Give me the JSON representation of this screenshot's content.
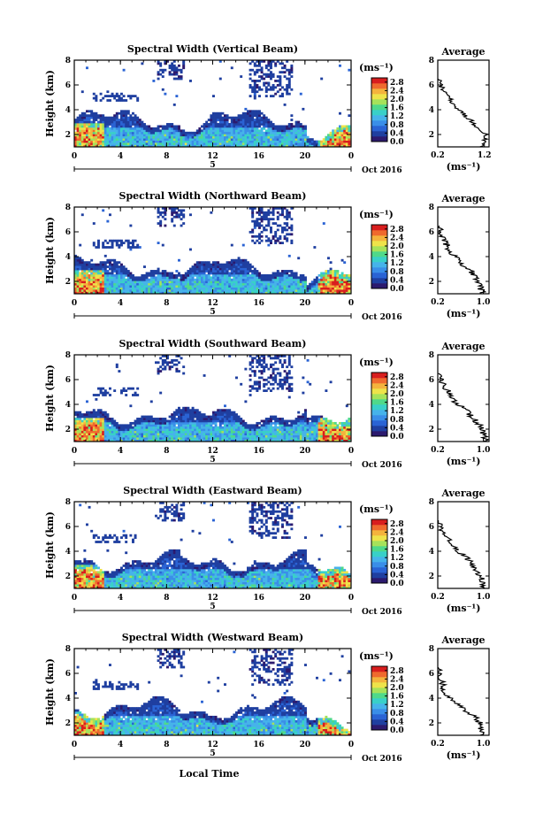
{
  "figure": {
    "xlabel": "Local Time",
    "day_label": "5",
    "month_label": "Oct 2016",
    "unit_label": "(ms⁻¹)",
    "avg_title": "Average",
    "avg_xunit": "(ms⁻¹)",
    "height_label": "Height (km)"
  },
  "chart_data": [
    {
      "type": "heatmap",
      "title": "Spectral Width (Vertical Beam)",
      "ylabel": "Height (km)",
      "x_ticks": [
        "0",
        "4",
        "8",
        "12",
        "16",
        "20",
        "0"
      ],
      "y_ticks": [
        "2",
        "4",
        "6",
        "8"
      ],
      "xlim": [
        0,
        24
      ],
      "ylim": [
        1,
        8
      ],
      "colorbar": {
        "ticks": [
          "0.0",
          "0.4",
          "0.8",
          "1.2",
          "1.6",
          "2.0",
          "2.4",
          "2.8"
        ],
        "range": [
          0,
          3.0
        ]
      },
      "profile": {
        "title": "Average",
        "x_ticks": [
          "0.2",
          "1.2"
        ],
        "xlim": [
          0.2,
          1.3
        ],
        "y_ticks": [
          "2",
          "4",
          "6",
          "8"
        ],
        "ylim": [
          1,
          8
        ],
        "heights": [
          1.0,
          1.5,
          2.0,
          2.5,
          3.0,
          3.5,
          4.0,
          4.5,
          5.0,
          5.5,
          6.0,
          6.5
        ],
        "values": [
          1.15,
          1.2,
          1.25,
          1.05,
          0.95,
          0.8,
          0.65,
          0.5,
          0.45,
          0.35,
          0.25,
          0.22
        ]
      }
    },
    {
      "type": "heatmap",
      "title": "Spectral Width (Northward Beam)",
      "ylabel": "Height (km)",
      "x_ticks": [
        "0",
        "4",
        "8",
        "12",
        "16",
        "20",
        "0"
      ],
      "y_ticks": [
        "2",
        "4",
        "6",
        "8"
      ],
      "xlim": [
        0,
        24
      ],
      "ylim": [
        1,
        8
      ],
      "colorbar": {
        "ticks": [
          "0.0",
          "0.4",
          "0.8",
          "1.2",
          "1.6",
          "2.0",
          "2.4",
          "2.8"
        ],
        "range": [
          0,
          3.0
        ]
      },
      "profile": {
        "title": "Average",
        "x_ticks": [
          "0.2",
          "1.0"
        ],
        "xlim": [
          0.2,
          1.1
        ],
        "y_ticks": [
          "2",
          "4",
          "6",
          "8"
        ],
        "ylim": [
          1,
          8
        ],
        "heights": [
          1.0,
          1.5,
          2.0,
          2.5,
          3.0,
          3.5,
          4.0,
          4.5,
          5.0,
          5.5,
          6.0,
          6.5
        ],
        "values": [
          1.0,
          0.95,
          0.9,
          0.85,
          0.75,
          0.6,
          0.5,
          0.4,
          0.35,
          0.3,
          0.25,
          0.22
        ]
      }
    },
    {
      "type": "heatmap",
      "title": "Spectral Width (Southward Beam)",
      "ylabel": "Height (km)",
      "x_ticks": [
        "0",
        "4",
        "8",
        "12",
        "16",
        "20",
        "0"
      ],
      "y_ticks": [
        "2",
        "4",
        "6",
        "8"
      ],
      "xlim": [
        0,
        24
      ],
      "ylim": [
        1,
        8
      ],
      "colorbar": {
        "ticks": [
          "0.0",
          "0.4",
          "0.8",
          "1.2",
          "1.6",
          "2.0",
          "2.4",
          "2.8"
        ],
        "range": [
          0,
          3.0
        ]
      },
      "profile": {
        "title": "Average",
        "x_ticks": [
          "0.2",
          "1.0"
        ],
        "xlim": [
          0.2,
          1.1
        ],
        "y_ticks": [
          "2",
          "4",
          "6",
          "8"
        ],
        "ylim": [
          1,
          8
        ],
        "heights": [
          1.0,
          1.5,
          2.0,
          2.5,
          3.0,
          3.5,
          4.0,
          4.5,
          5.0,
          5.5,
          6.0,
          6.5
        ],
        "values": [
          1.05,
          1.0,
          1.0,
          0.9,
          0.8,
          0.7,
          0.55,
          0.45,
          0.4,
          0.3,
          0.25,
          0.22
        ]
      }
    },
    {
      "type": "heatmap",
      "title": "Spectral Width (Eastward Beam)",
      "ylabel": "Height (km)",
      "x_ticks": [
        "0",
        "4",
        "8",
        "12",
        "16",
        "20",
        "0"
      ],
      "y_ticks": [
        "2",
        "4",
        "6",
        "8"
      ],
      "xlim": [
        0,
        24
      ],
      "ylim": [
        1,
        8
      ],
      "colorbar": {
        "ticks": [
          "0.0",
          "0.4",
          "0.8",
          "1.2",
          "1.6",
          "2.0",
          "2.4",
          "2.8"
        ],
        "range": [
          0,
          3.0
        ]
      },
      "profile": {
        "title": "Average",
        "x_ticks": [
          "0.2",
          "1.0"
        ],
        "xlim": [
          0.2,
          1.1
        ],
        "y_ticks": [
          "2",
          "4",
          "6",
          "8"
        ],
        "ylim": [
          1,
          8
        ],
        "heights": [
          1.0,
          1.5,
          2.0,
          2.5,
          3.0,
          3.5,
          4.0,
          4.5,
          5.0,
          5.5,
          6.0,
          6.5
        ],
        "values": [
          1.0,
          1.0,
          0.95,
          0.85,
          0.8,
          0.7,
          0.55,
          0.45,
          0.4,
          0.3,
          0.25,
          0.22
        ]
      }
    },
    {
      "type": "heatmap",
      "title": "Spectral Width (Westward Beam)",
      "ylabel": "Height (km)",
      "x_ticks": [
        "0",
        "4",
        "8",
        "12",
        "16",
        "20",
        "0"
      ],
      "y_ticks": [
        "2",
        "4",
        "6",
        "8"
      ],
      "xlim": [
        0,
        24
      ],
      "ylim": [
        1,
        8
      ],
      "colorbar": {
        "ticks": [
          "0.0",
          "0.4",
          "0.8",
          "1.2",
          "1.6",
          "2.0",
          "2.4",
          "2.8"
        ],
        "range": [
          0,
          3.0
        ]
      },
      "profile": {
        "title": "Average",
        "x_ticks": [
          "0.2",
          "1.0"
        ],
        "xlim": [
          0.2,
          1.1
        ],
        "y_ticks": [
          "2",
          "4",
          "6",
          "8"
        ],
        "ylim": [
          1,
          8
        ],
        "heights": [
          1.0,
          1.5,
          2.0,
          2.5,
          3.0,
          3.5,
          4.0,
          4.5,
          5.0,
          5.5,
          6.0,
          6.5
        ],
        "values": [
          1.0,
          0.95,
          0.95,
          0.85,
          0.7,
          0.55,
          0.4,
          0.32,
          0.3,
          0.25,
          0.22,
          0.2
        ]
      }
    }
  ],
  "colors": {
    "scale": [
      "#2c1a6e",
      "#1f3fa0",
      "#2a63d4",
      "#3a8ee8",
      "#46b3ea",
      "#39d0c8",
      "#4fd98a",
      "#a6e25a",
      "#eee34a",
      "#f4b33d",
      "#ef6a2e",
      "#d81e1e"
    ]
  }
}
